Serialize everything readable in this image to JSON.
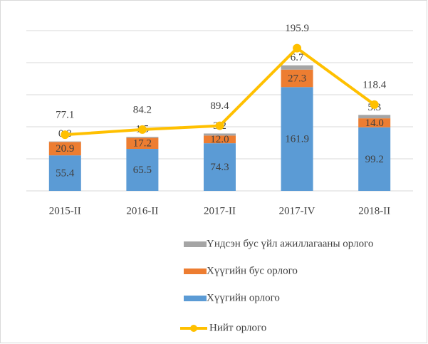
{
  "chart_data": {
    "type": "bar",
    "categories": [
      "2015-II",
      "2016-II",
      "2017-II",
      "2017-IV",
      "2018-II"
    ],
    "stacked": true,
    "ylim": [
      0,
      250
    ],
    "yticks": [
      0,
      50,
      100,
      150,
      200,
      250
    ],
    "grid": true,
    "y2lim": [
      0,
      220
    ],
    "series": [
      {
        "name": "Хүүгийн орлого",
        "color": "#5b9bd5",
        "values": [
          55.4,
          65.5,
          74.3,
          161.9,
          99.2
        ]
      },
      {
        "name": "Хүүгийн бус орлого",
        "color": "#ed7d31",
        "values": [
          20.9,
          17.2,
          12.0,
          27.3,
          14.0
        ],
        "value_labels": [
          "20.9",
          "17.2",
          "12.0",
          "27.3",
          "14.0"
        ]
      },
      {
        "name": "Үндсэн бус үйл ажиллагааны орлого",
        "color": "#a5a5a5",
        "values": [
          0.8,
          1.5,
          3.2,
          6.7,
          5.3
        ]
      },
      {
        "name": "Нийт орлого",
        "color": "#ffc000",
        "type": "line",
        "axis": "y2",
        "values": [
          77.1,
          84.2,
          89.4,
          195.9,
          118.4
        ]
      }
    ],
    "legend": "bottom"
  }
}
